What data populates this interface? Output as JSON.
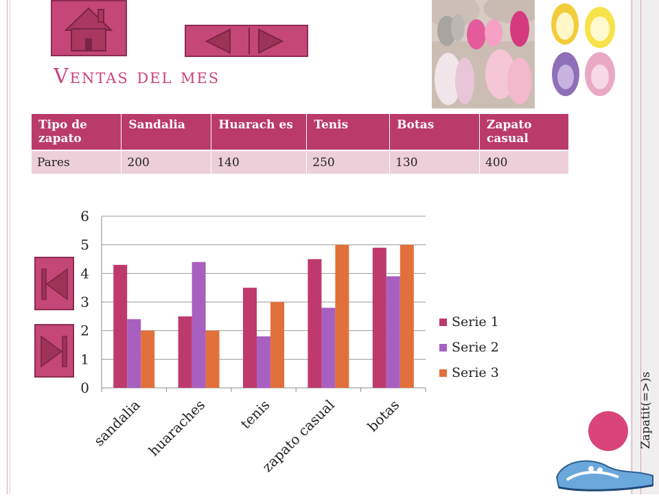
{
  "slide": {
    "title": "Ventas del mes",
    "footer": "Zapatit(=>)s"
  },
  "table": {
    "headers": [
      "Tipo de zapato",
      "Sandalia",
      "Huarach es",
      "Tenis",
      "Botas",
      "Zapato casual"
    ],
    "rows": [
      [
        "Pares",
        "200",
        "140",
        "250",
        "130",
        "400"
      ]
    ]
  },
  "chart_data": {
    "type": "bar",
    "categories": [
      "sandalia",
      "huaraches",
      "tenis",
      "zapato casual",
      "botas"
    ],
    "series": [
      {
        "name": "Serie 1",
        "values": [
          4.3,
          2.5,
          3.5,
          4.5,
          4.9
        ],
        "color": "#be3a6c"
      },
      {
        "name": "Serie 2",
        "values": [
          2.4,
          4.4,
          1.8,
          2.8,
          3.9
        ],
        "color": "#a860c0"
      },
      {
        "name": "Serie 3",
        "values": [
          2.0,
          2.0,
          3.0,
          5.0,
          5.0
        ],
        "color": "#e2703a"
      }
    ],
    "yticks": [
      "0",
      "1",
      "2",
      "3",
      "4",
      "5",
      "6"
    ],
    "ylim": [
      0,
      6
    ],
    "grid": true,
    "legend": "right"
  },
  "icons": {
    "home": "home-icon",
    "prev": "arrow-left-icon",
    "next": "arrow-right-icon",
    "first": "skip-first-icon",
    "last": "skip-last-icon"
  },
  "colors": {
    "accent": "#c44777",
    "header": "#ba3b6a",
    "row": "#eccfd9"
  }
}
